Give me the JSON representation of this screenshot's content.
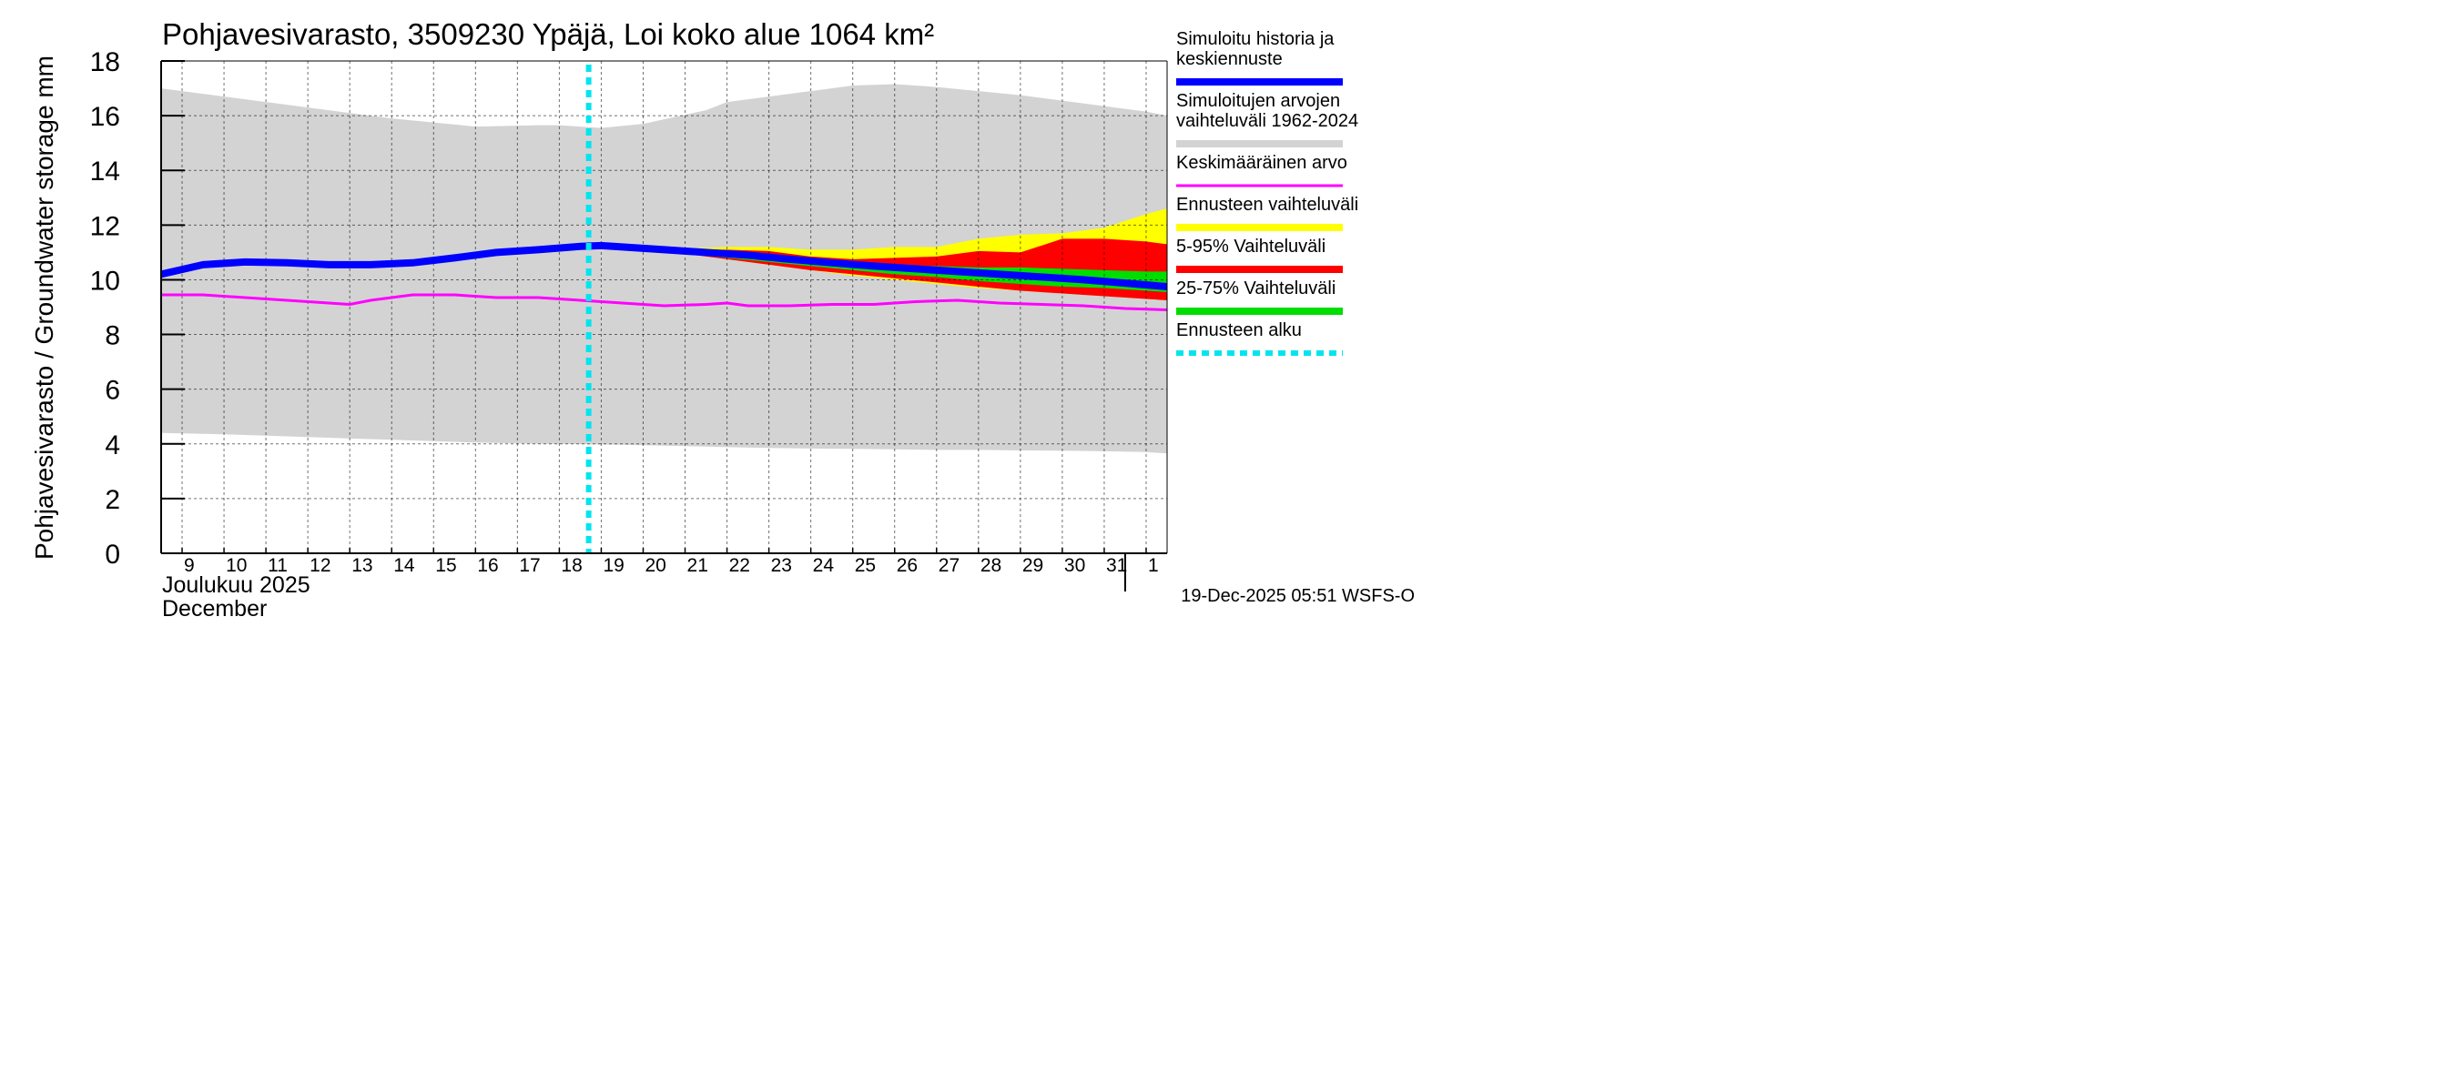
{
  "chart_data": {
    "type": "area",
    "title": "Pohjavesivarasto, 3509230 Ypäjä, Loi koko alue 1064 km²",
    "ylabel": "Pohjavesivarasto / Groundwater storage   mm",
    "ylim": [
      0,
      18
    ],
    "yticks": [
      "0",
      "2",
      "4",
      "6",
      "8",
      "10",
      "12",
      "14",
      "16",
      "18"
    ],
    "x_day_range": [
      8.5,
      32.5
    ],
    "x_tick_labels": [
      "9",
      "10",
      "11",
      "12",
      "13",
      "14",
      "15",
      "16",
      "17",
      "18",
      "19",
      "20",
      "21",
      "22",
      "23",
      "24",
      "25",
      "26",
      "27",
      "28",
      "29",
      "30",
      "31",
      "1"
    ],
    "month_fi": "Joulukuu  2025",
    "month_en": "December",
    "forecast_start_day": 18.7,
    "timestamp": "19-Dec-2025 05:51 WSFS-O",
    "series": {
      "historical_range": {
        "name": "Simuloitujen arvojen vaihteluväli 1962-2024",
        "color": "#d3d3d3",
        "x": [
          8.5,
          10,
          12,
          14,
          15,
          16,
          17.5,
          18,
          19,
          20,
          21.5,
          22,
          23,
          24,
          25,
          26,
          27,
          28,
          29,
          30,
          31,
          32,
          32.5
        ],
        "upper": [
          17.0,
          16.7,
          16.3,
          15.9,
          15.75,
          15.6,
          15.65,
          15.65,
          15.55,
          15.7,
          16.2,
          16.5,
          16.7,
          16.9,
          17.1,
          17.15,
          17.05,
          16.9,
          16.75,
          16.55,
          16.35,
          16.15,
          16.0
        ],
        "lower": [
          4.4,
          4.35,
          4.25,
          4.15,
          4.1,
          4.05,
          4.0,
          4.0,
          3.98,
          3.95,
          3.9,
          3.88,
          3.85,
          3.83,
          3.82,
          3.8,
          3.78,
          3.78,
          3.76,
          3.75,
          3.73,
          3.7,
          3.65
        ]
      },
      "forecast_range": {
        "name": "Ennusteen vaihteluväli",
        "color": "#ffff00",
        "x": [
          19,
          20,
          21,
          22,
          23,
          24,
          25,
          26,
          27,
          28,
          29,
          30,
          31,
          32,
          32.5
        ],
        "upper": [
          11.2,
          11.15,
          11.15,
          11.2,
          11.2,
          11.1,
          11.1,
          11.2,
          11.2,
          11.5,
          11.65,
          11.7,
          11.9,
          12.4,
          12.6
        ],
        "lower": [
          11.2,
          11.1,
          10.95,
          10.75,
          10.55,
          10.35,
          10.15,
          10.0,
          9.85,
          9.7,
          9.6,
          9.5,
          9.4,
          9.3,
          9.25
        ]
      },
      "p5_95": {
        "name": "5-95% Vaihteluväli",
        "color": "#ff0000",
        "x": [
          19,
          20,
          21,
          22,
          23,
          24,
          25,
          26,
          27,
          28,
          29,
          30,
          31,
          32,
          32.5
        ],
        "upper": [
          11.2,
          11.15,
          11.1,
          11.1,
          11.05,
          10.85,
          10.75,
          10.8,
          10.85,
          11.05,
          11.0,
          11.5,
          11.5,
          11.4,
          11.3
        ],
        "lower": [
          11.2,
          11.1,
          10.95,
          10.75,
          10.55,
          10.35,
          10.2,
          10.05,
          9.9,
          9.75,
          9.6,
          9.5,
          9.4,
          9.3,
          9.25
        ]
      },
      "p25_75": {
        "name": "25-75% Vaihteluväli",
        "color": "#00dd00",
        "x": [
          19,
          20,
          21,
          22,
          23,
          24,
          25,
          26,
          27,
          28,
          29,
          30,
          31,
          32,
          32.5
        ],
        "upper": [
          11.2,
          11.15,
          11.05,
          10.95,
          10.85,
          10.72,
          10.6,
          10.55,
          10.5,
          10.45,
          10.45,
          10.4,
          10.35,
          10.3,
          10.3
        ],
        "lower": [
          11.2,
          11.1,
          10.95,
          10.8,
          10.65,
          10.5,
          10.35,
          10.2,
          10.1,
          9.95,
          9.85,
          9.75,
          9.7,
          9.6,
          9.55
        ]
      },
      "median": {
        "name": "Simuloitu historia ja keskiennuste",
        "color": "#0000ff",
        "x": [
          8.5,
          9.5,
          10.5,
          11.5,
          12.5,
          13.5,
          14.5,
          15.5,
          16.5,
          17.5,
          18.5,
          19,
          19.5,
          20.5,
          21.5,
          22.5,
          23.5,
          24.5,
          25.5,
          26.5,
          27.5,
          28.5,
          29.5,
          30.5,
          31.5,
          32.5
        ],
        "values": [
          10.2,
          10.55,
          10.65,
          10.62,
          10.55,
          10.55,
          10.62,
          10.8,
          11.0,
          11.1,
          11.22,
          11.25,
          11.2,
          11.1,
          11.0,
          10.9,
          10.75,
          10.62,
          10.5,
          10.4,
          10.3,
          10.2,
          10.1,
          10.0,
          9.88,
          9.75
        ]
      },
      "mean": {
        "name": "Keskimääräinen arvo",
        "color": "#ff00ff",
        "x": [
          8.5,
          9.5,
          10.5,
          11.5,
          12.5,
          13,
          13.5,
          14.5,
          15.5,
          16.5,
          17.5,
          18.5,
          19.5,
          20.5,
          21.5,
          22,
          22.5,
          23.5,
          24.5,
          25.5,
          26.5,
          27.5,
          28.5,
          29.5,
          30.5,
          31.5,
          32.5
        ],
        "values": [
          9.45,
          9.45,
          9.35,
          9.25,
          9.15,
          9.1,
          9.25,
          9.45,
          9.45,
          9.35,
          9.35,
          9.25,
          9.15,
          9.05,
          9.1,
          9.15,
          9.05,
          9.05,
          9.1,
          9.1,
          9.2,
          9.25,
          9.15,
          9.1,
          9.05,
          8.95,
          8.9
        ]
      }
    },
    "legend": [
      {
        "label": "Simuloitu historia ja keskiennuste",
        "color": "#0000ff",
        "style": "thick"
      },
      {
        "label": "Simuloitujen arvojen vaihteluväli 1962-2024",
        "color": "#d3d3d3",
        "style": "thick"
      },
      {
        "label": "Keskimääräinen arvo",
        "color": "#ff00ff",
        "style": "thin"
      },
      {
        "label": "Ennusteen vaihteluväli",
        "color": "#ffff00",
        "style": "thick"
      },
      {
        "label": "5-95% Vaihteluväli",
        "color": "#ff0000",
        "style": "thick"
      },
      {
        "label": "25-75% Vaihteluväli",
        "color": "#00dd00",
        "style": "thick"
      },
      {
        "label": "Ennusteen alku",
        "color": "#00e5ee",
        "style": "dotted"
      }
    ]
  }
}
